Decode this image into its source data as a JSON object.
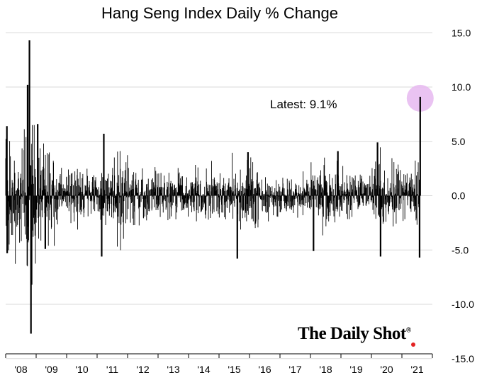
{
  "chart_data": {
    "type": "bar",
    "title": "Hang Seng Index Daily % Change",
    "xlabel": "",
    "ylabel": "",
    "ylim": [
      -15.0,
      15.0
    ],
    "yticks": [
      "15.0",
      "10.0",
      "5.0",
      "0.0",
      "-5.0",
      "-10.0",
      "-15.0"
    ],
    "ytick_values": [
      15,
      10,
      5,
      0,
      -5,
      -10,
      -15
    ],
    "xtick_labels": [
      "'08",
      "'09",
      "'10",
      "'11",
      "'12",
      "'13",
      "'14",
      "'15",
      "'16",
      "'17",
      "'18",
      "'19",
      "'20",
      "'21"
    ],
    "x_start_year": 2008,
    "grid": true,
    "series": [
      {
        "values_note_free": true,
        "extremes": [
          {
            "year": 2008.78,
            "value": 14.3
          },
          {
            "year": 2008.83,
            "value": -12.7
          },
          {
            "year": 2008.72,
            "value": 10.2
          },
          {
            "year": 2008.85,
            "value": -8.2
          },
          {
            "year": 2008.04,
            "value": 6.4
          },
          {
            "year": 2008.05,
            "value": -5.3
          },
          {
            "year": 2009.05,
            "value": 6.6
          },
          {
            "year": 2009.3,
            "value": -4.9
          },
          {
            "year": 2011.22,
            "value": 5.7
          },
          {
            "year": 2011.15,
            "value": -5.6
          },
          {
            "year": 2015.6,
            "value": -5.8
          },
          {
            "year": 2015.95,
            "value": 4.0
          },
          {
            "year": 2018.1,
            "value": -5.1
          },
          {
            "year": 2018.9,
            "value": 4.1
          },
          {
            "year": 2020.2,
            "value": 4.9
          },
          {
            "year": 2020.3,
            "value": -5.6
          },
          {
            "year": 2021.58,
            "value": -5.7
          },
          {
            "year": 2021.6,
            "value": 9.1
          }
        ]
      }
    ],
    "annotation": {
      "text": "Latest:  9.1%",
      "value": 9.1,
      "highlight_color": "#e6b8f0"
    }
  },
  "watermark": {
    "text": "The Daily Shot",
    "reg": "®"
  },
  "colors": {
    "bars": "#000000",
    "grid": "#d9d9d9",
    "dot": "#e32222"
  }
}
